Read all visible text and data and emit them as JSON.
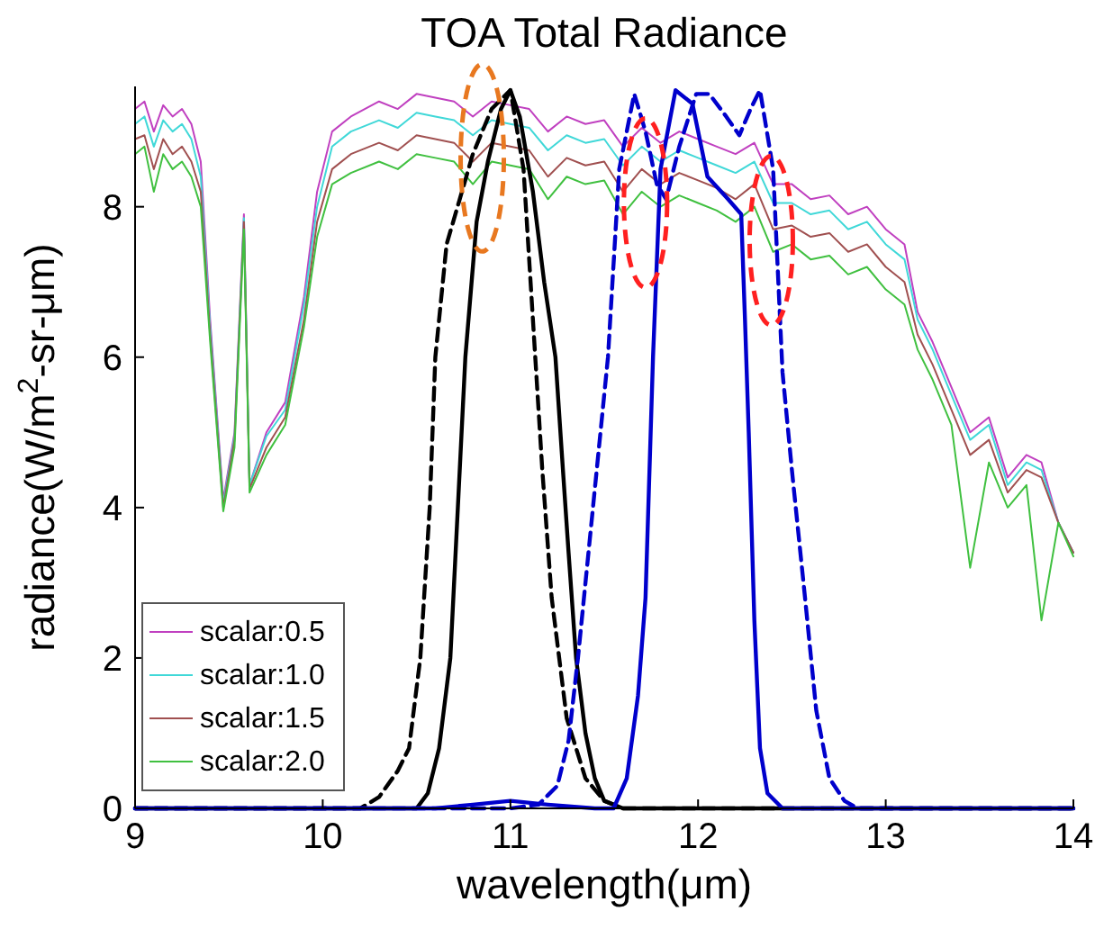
{
  "chart_data": {
    "type": "line",
    "title": "TOA Total Radiance",
    "xlabel": "wavelength(μm)",
    "ylabel": "radiance(W/m$^{2}$-sr-μm)",
    "xlim": [
      9,
      14
    ],
    "xticks": [
      9,
      10,
      11,
      12,
      13,
      14
    ],
    "ylim": [
      0,
      9.6
    ],
    "yticks": [
      0,
      2,
      4,
      6,
      8
    ],
    "legend": "bottom left",
    "x": [
      9.0,
      9.05,
      9.1,
      9.15,
      9.2,
      9.25,
      9.3,
      9.35,
      9.4,
      9.47,
      9.53,
      9.58,
      9.61,
      9.7,
      9.8,
      9.9,
      9.97,
      10.05,
      10.15,
      10.3,
      10.4,
      10.5,
      10.6,
      10.7,
      10.8,
      10.9,
      11.0,
      11.1,
      11.2,
      11.3,
      11.4,
      11.5,
      11.6,
      11.7,
      11.8,
      11.9,
      12.0,
      12.1,
      12.2,
      12.3,
      12.4,
      12.5,
      12.6,
      12.7,
      12.8,
      12.9,
      13.0,
      13.1,
      13.17,
      13.25,
      13.35,
      13.45,
      13.55,
      13.65,
      13.75,
      13.83,
      13.92,
      14.0
    ],
    "series": [
      {
        "name": "scalar:0.5",
        "color": "#c040c0",
        "values": [
          9.3,
          9.4,
          9.0,
          9.35,
          9.2,
          9.3,
          9.1,
          8.6,
          6.5,
          4.1,
          5.0,
          7.9,
          4.3,
          5.0,
          5.4,
          6.8,
          8.2,
          9.0,
          9.2,
          9.4,
          9.3,
          9.5,
          9.45,
          9.4,
          9.2,
          9.4,
          9.35,
          9.3,
          9.0,
          9.2,
          9.1,
          9.15,
          8.8,
          9.05,
          8.85,
          9.0,
          8.9,
          8.8,
          8.7,
          8.85,
          8.3,
          8.3,
          8.1,
          8.15,
          7.9,
          8.0,
          7.7,
          7.5,
          6.6,
          6.2,
          5.6,
          5.0,
          5.2,
          4.4,
          4.7,
          4.6,
          3.8,
          3.4
        ]
      },
      {
        "name": "scalar:1.0",
        "color": "#40d8d8",
        "values": [
          9.1,
          9.2,
          8.8,
          9.15,
          9.0,
          9.1,
          8.9,
          8.4,
          6.4,
          4.05,
          4.95,
          7.85,
          4.3,
          4.95,
          5.3,
          6.7,
          8.0,
          8.8,
          9.0,
          9.15,
          9.05,
          9.25,
          9.2,
          9.15,
          8.95,
          9.15,
          9.1,
          9.05,
          8.75,
          8.95,
          8.85,
          8.9,
          8.55,
          8.8,
          8.6,
          8.75,
          8.65,
          8.55,
          8.45,
          8.6,
          8.05,
          8.05,
          7.9,
          7.95,
          7.7,
          7.8,
          7.5,
          7.3,
          6.5,
          6.1,
          5.5,
          4.9,
          5.1,
          4.3,
          4.6,
          4.5,
          3.8,
          3.4
        ]
      },
      {
        "name": "scalar:1.5",
        "color": "#a05050",
        "values": [
          8.9,
          8.95,
          8.5,
          8.9,
          8.7,
          8.8,
          8.6,
          8.2,
          6.3,
          4.0,
          4.9,
          7.8,
          4.25,
          4.8,
          5.2,
          6.5,
          7.8,
          8.5,
          8.7,
          8.85,
          8.75,
          8.95,
          8.9,
          8.85,
          8.6,
          8.85,
          8.8,
          8.75,
          8.4,
          8.65,
          8.55,
          8.6,
          8.2,
          8.5,
          8.3,
          8.45,
          8.35,
          8.25,
          8.1,
          8.3,
          7.7,
          7.75,
          7.6,
          7.65,
          7.4,
          7.5,
          7.2,
          7.0,
          6.3,
          5.9,
          5.3,
          4.7,
          4.9,
          4.2,
          4.5,
          4.4,
          3.8,
          3.4
        ]
      },
      {
        "name": "scalar:2.0",
        "color": "#40c040",
        "values": [
          8.7,
          8.8,
          8.2,
          8.7,
          8.5,
          8.6,
          8.4,
          8.0,
          6.2,
          3.95,
          4.8,
          7.7,
          4.2,
          4.7,
          5.1,
          6.4,
          7.6,
          8.3,
          8.45,
          8.6,
          8.5,
          8.7,
          8.65,
          8.6,
          8.3,
          8.6,
          8.55,
          8.5,
          8.1,
          8.4,
          8.3,
          8.35,
          7.9,
          8.2,
          8.0,
          8.15,
          8.05,
          7.95,
          7.8,
          8.0,
          7.4,
          7.5,
          7.3,
          7.35,
          7.1,
          7.2,
          6.9,
          6.7,
          6.1,
          5.7,
          5.1,
          3.2,
          4.6,
          4.0,
          4.3,
          2.5,
          3.8,
          3.35
        ]
      },
      {
        "color": "#000000",
        "line_style": "dashed",
        "x": [
          9.0,
          10.2,
          10.3,
          10.4,
          10.46,
          10.52,
          10.57,
          10.6,
          10.66,
          10.73,
          10.8,
          10.9,
          11.0,
          11.07,
          11.12,
          11.17,
          11.22,
          11.3,
          11.4,
          11.5,
          11.6,
          14.0
        ],
        "values": [
          0,
          0,
          0.15,
          0.5,
          0.8,
          2,
          4,
          6,
          7.5,
          8.1,
          8.7,
          9.3,
          9.55,
          8.5,
          6.5,
          4.5,
          2.8,
          1.2,
          0.4,
          0.1,
          0,
          0
        ]
      },
      {
        "color": "#000000",
        "x": [
          9.0,
          10.5,
          10.56,
          10.62,
          10.68,
          10.72,
          10.76,
          10.82,
          10.88,
          10.95,
          11.0,
          11.05,
          11.12,
          11.18,
          11.24,
          11.28,
          11.31,
          11.35,
          11.4,
          11.45,
          11.5,
          11.6,
          14.0
        ],
        "values": [
          0,
          0,
          0.2,
          0.8,
          2,
          4,
          6,
          7.8,
          8.6,
          9.3,
          9.55,
          9.2,
          8.2,
          7,
          6,
          4.5,
          3.4,
          2,
          1,
          0.4,
          0.1,
          0,
          0
        ]
      },
      {
        "color": "#0000cc",
        "line_style": "dashed",
        "x": [
          9.0,
          11.0,
          11.15,
          11.25,
          11.31,
          11.36,
          11.42,
          11.48,
          11.52,
          11.58,
          11.66,
          11.72,
          11.78,
          11.83,
          11.9,
          11.99,
          12.06,
          12.15,
          12.22,
          12.28,
          12.33,
          12.4,
          12.45,
          12.5,
          12.57,
          12.63,
          12.7,
          12.78,
          12.85,
          14.0
        ],
        "values": [
          0,
          0,
          0.05,
          0.3,
          0.9,
          2,
          3.5,
          5,
          6,
          8.5,
          9.5,
          9.0,
          8.3,
          8.1,
          8.8,
          9.5,
          9.5,
          9.2,
          8.95,
          9.3,
          9.55,
          8.5,
          5.8,
          4.5,
          2.8,
          1.3,
          0.4,
          0.1,
          0,
          0
        ]
      },
      {
        "color": "#0000cc",
        "x": [
          9.0,
          10.6,
          10.8,
          11.0,
          11.2,
          11.45,
          11.55,
          11.62,
          11.68,
          11.72,
          11.76,
          11.8,
          11.88,
          11.97,
          12.05,
          12.16,
          12.23,
          12.25,
          12.27,
          12.3,
          12.33,
          12.37,
          12.45,
          14.0
        ],
        "values": [
          0,
          0,
          0.05,
          0.1,
          0.05,
          0,
          0,
          0.4,
          1.5,
          2.8,
          6,
          8.5,
          9.55,
          9.37,
          8.4,
          8.1,
          7.9,
          6.5,
          5,
          2.5,
          0.8,
          0.2,
          0,
          0
        ]
      }
    ]
  }
}
